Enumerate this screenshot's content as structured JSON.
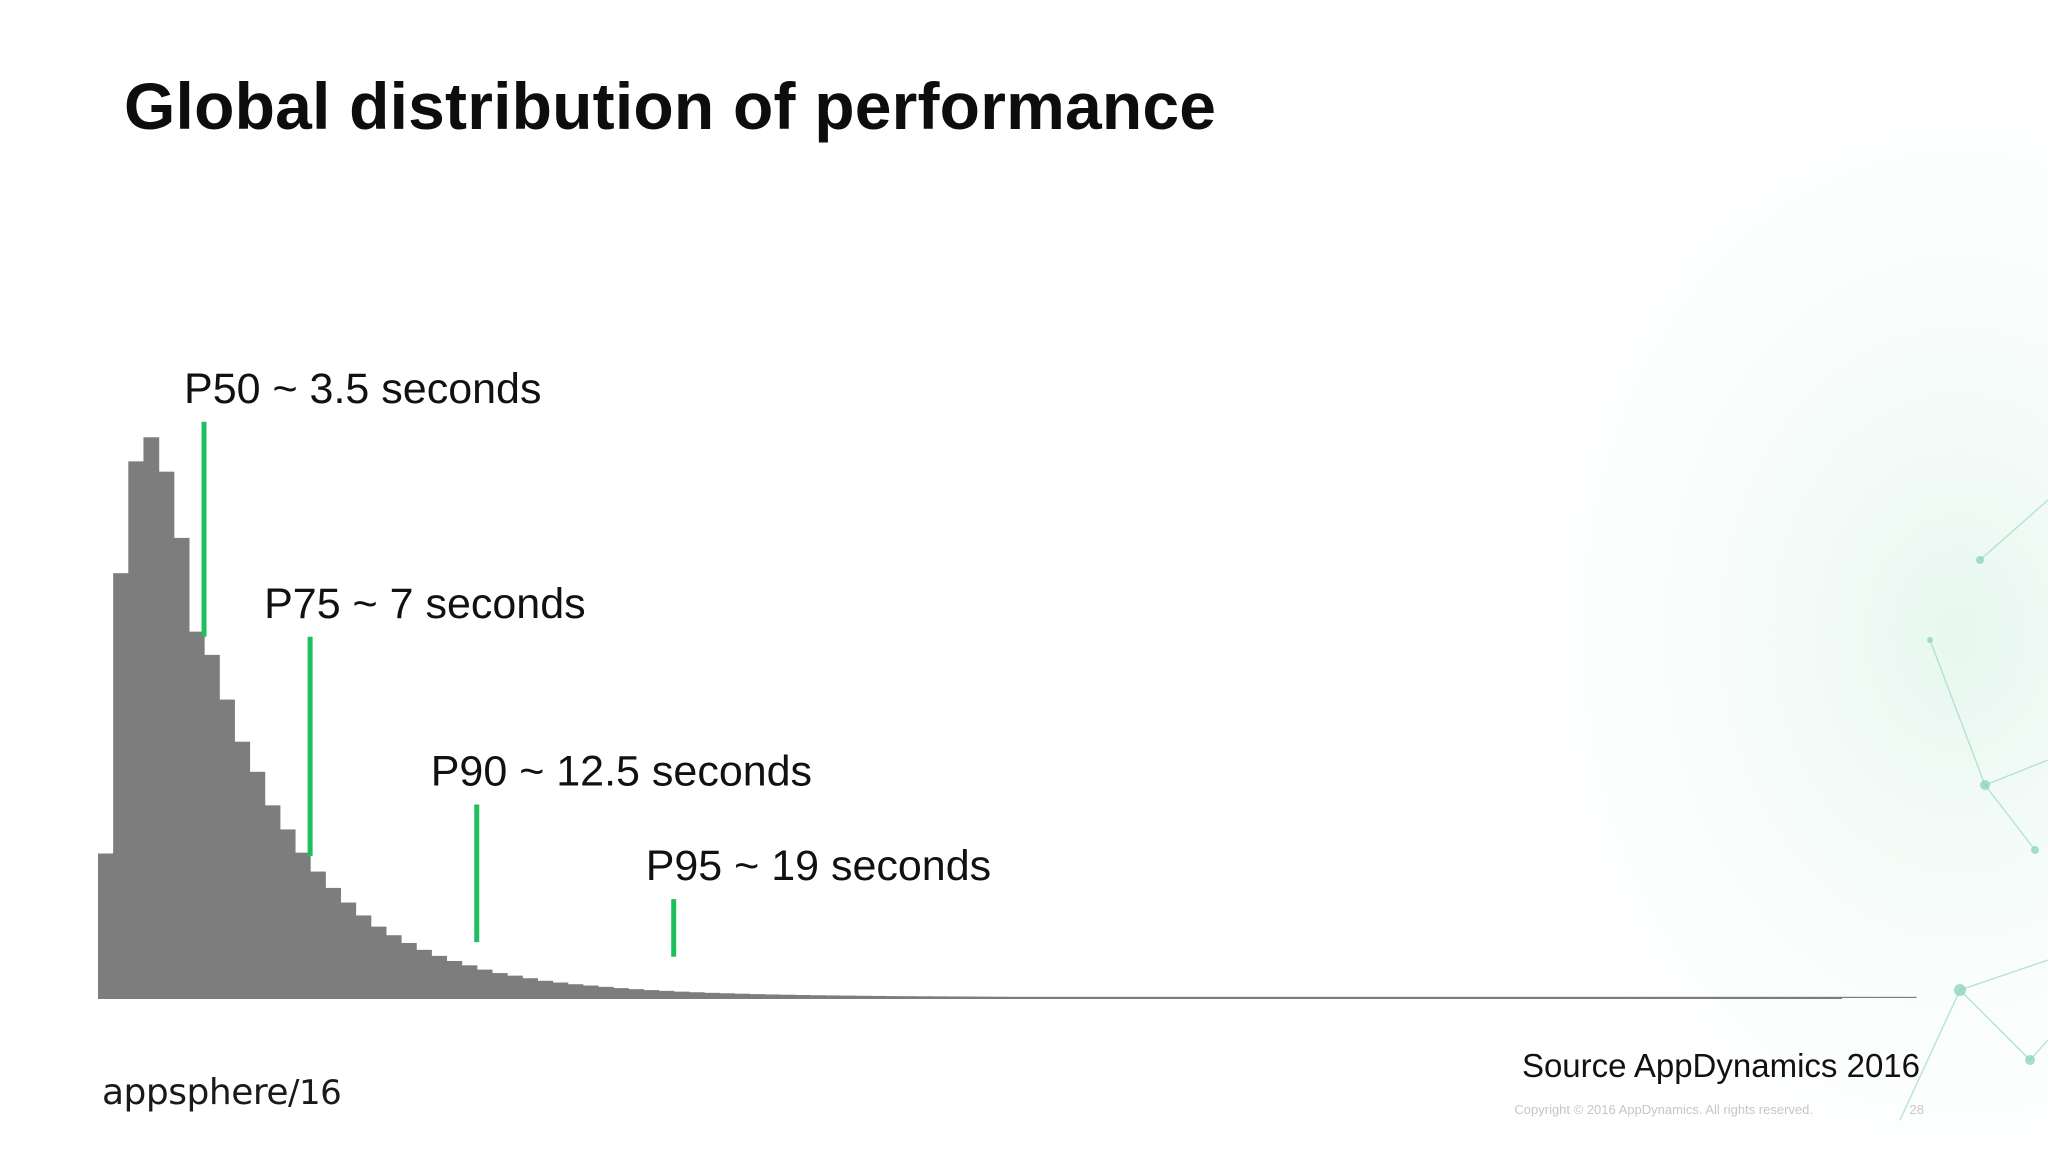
{
  "slide": {
    "title": "Global distribution of performance",
    "source": "Source AppDynamics 2016",
    "copyright": "Copyright © 2016 AppDynamics. All rights reserved.",
    "page_number": "28",
    "brand": {
      "name": "appsphere",
      "suffix": "/16"
    }
  },
  "colors": {
    "bars": "#7d7d7d",
    "markers": "#1fbf5f",
    "accent_decoration": "#7fd6b4"
  },
  "chart_data": {
    "type": "bar",
    "title": "",
    "xlabel": "",
    "ylabel": "",
    "grid": false,
    "bin_start_seconds": 0.0,
    "bin_width_seconds": 0.5,
    "values": [
      16.8,
      49.4,
      62.4,
      65.2,
      61.2,
      53.5,
      42.6,
      39.9,
      34.7,
      29.8,
      26.3,
      22.4,
      19.6,
      16.9,
      14.7,
      12.8,
      11.1,
      9.6,
      8.3,
      7.3,
      6.4,
      5.6,
      4.9,
      4.3,
      3.8,
      3.3,
      2.9,
      2.6,
      2.3,
      2.0,
      1.8,
      1.6,
      1.45,
      1.3,
      1.15,
      1.03,
      0.92,
      0.83,
      0.74,
      0.67,
      0.6,
      0.55,
      0.5,
      0.45,
      0.41,
      0.38,
      0.35,
      0.32,
      0.3,
      0.28,
      0.26,
      0.24,
      0.22,
      0.21,
      0.2,
      0.19,
      0.18,
      0.17,
      0.16,
      0.15,
      0.14,
      0.13,
      0.12,
      0.115,
      0.11,
      0.105,
      0.1,
      0.095,
      0.09,
      0.085,
      0.08,
      0.075,
      0.07,
      0.067,
      0.064,
      0.061,
      0.058,
      0.055,
      0.052,
      0.05,
      0.048,
      0.046,
      0.044,
      0.042,
      0.04,
      0.038,
      0.036,
      0.034,
      0.032,
      0.03,
      0.029,
      0.028,
      0.027,
      0.026,
      0.025,
      0.024,
      0.023,
      0.022,
      0.021,
      0.02,
      0.019,
      0.018,
      0.017,
      0.016,
      0.015,
      0.014,
      0.013,
      0.012,
      0.011,
      0.01,
      0.01,
      0.01,
      0.01,
      0.01,
      0.01,
      0.01,
      0.01,
      0.01,
      0.01,
      0.01
    ],
    "ylim": [
      0,
      66
    ],
    "markers": [
      {
        "label": "P50 ~ 3.5 seconds",
        "x": 3.5,
        "line_top": 67,
        "line_bottom": 42
      },
      {
        "label": "P75 ~ 7 seconds",
        "x": 7.0,
        "line_top": 42,
        "line_bottom": 16.5
      },
      {
        "label": "P90 ~ 12.5 seconds",
        "x": 12.5,
        "line_top": 22.5,
        "line_bottom": 6.5
      },
      {
        "label": "P95 ~ 19 seconds",
        "x": 19.0,
        "line_top": 11.5,
        "line_bottom": 4.8
      }
    ]
  }
}
